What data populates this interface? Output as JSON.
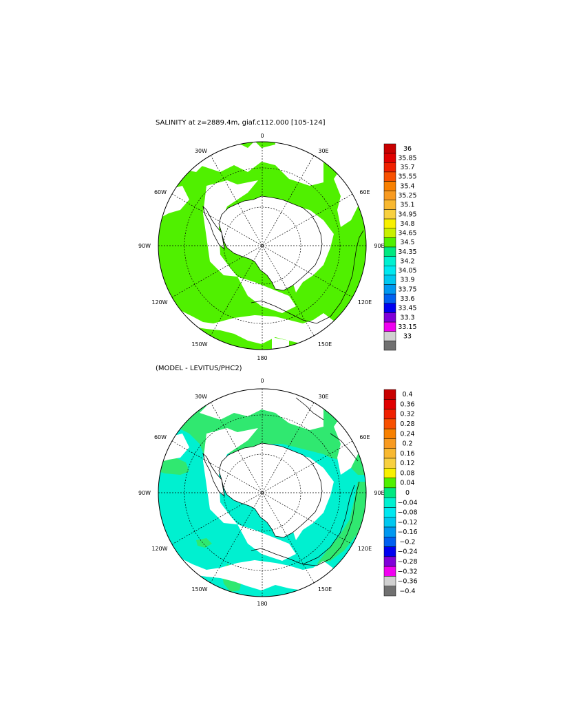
{
  "panels": [
    {
      "title": "SALINITY at z=2889.4m, giaf.c112.000 [105-124]",
      "lon_labels": {
        "top": "0",
        "bottom": "180",
        "left": "90W",
        "right": "90E",
        "tl30": "30W",
        "tl60": "60W",
        "tr30": "30E",
        "tr60": "60E",
        "bl120": "120W",
        "bl150": "150W",
        "br120": "120E",
        "br150": "150E"
      },
      "colorbar": {
        "labels": [
          "36",
          "35.85",
          "35.7",
          "35.55",
          "35.4",
          "35.25",
          "35.1",
          "34.95",
          "34.8",
          "34.65",
          "34.5",
          "34.35",
          "34.2",
          "34.05",
          "33.9",
          "33.75",
          "33.6",
          "33.45",
          "33.3",
          "33.15",
          "33"
        ],
        "colors": [
          "#c80000",
          "#e00000",
          "#f02000",
          "#f85000",
          "#f88000",
          "#f89a20",
          "#f8b830",
          "#f8d040",
          "#f8f000",
          "#c8f000",
          "#50f000",
          "#00e880",
          "#00f0d0",
          "#00e8f0",
          "#00c8f0",
          "#0098f0",
          "#0060f0",
          "#0000f0",
          "#8000d8",
          "#f000f0",
          "#d0d0d0",
          "#707070"
        ]
      },
      "ocean_color": "#50f000"
    },
    {
      "title": "(MODEL - LEVITUS/PHC2)",
      "lon_labels": {
        "top": "0",
        "bottom": "180",
        "left": "90W",
        "right": "90E",
        "tl30": "30W",
        "tl60": "60W",
        "tr30": "30E",
        "tr60": "60E",
        "bl120": "120W",
        "bl150": "150W",
        "br120": "120E",
        "br150": "150E"
      },
      "colorbar": {
        "labels": [
          "0.4",
          "0.36",
          "0.32",
          "0.28",
          "0.24",
          "0.2",
          "0.16",
          "0.12",
          "0.08",
          "0.04",
          "0",
          "−0.04",
          "−0.08",
          "−0.12",
          "−0.16",
          "−0.2",
          "−0.24",
          "−0.28",
          "−0.32",
          "−0.36",
          "−0.4"
        ],
        "colors": [
          "#c80000",
          "#e00000",
          "#f02000",
          "#f85000",
          "#f88000",
          "#f89a20",
          "#f8b830",
          "#f8d040",
          "#f8f000",
          "#50f000",
          "#00e880",
          "#00f0d0",
          "#00e8f0",
          "#00c8f0",
          "#0098f0",
          "#0060f0",
          "#0000f0",
          "#8000d8",
          "#f000f0",
          "#d0d0d0",
          "#707070"
        ]
      },
      "ocean_color_north": "#30e870",
      "ocean_color_south": "#00f0d0"
    }
  ]
}
